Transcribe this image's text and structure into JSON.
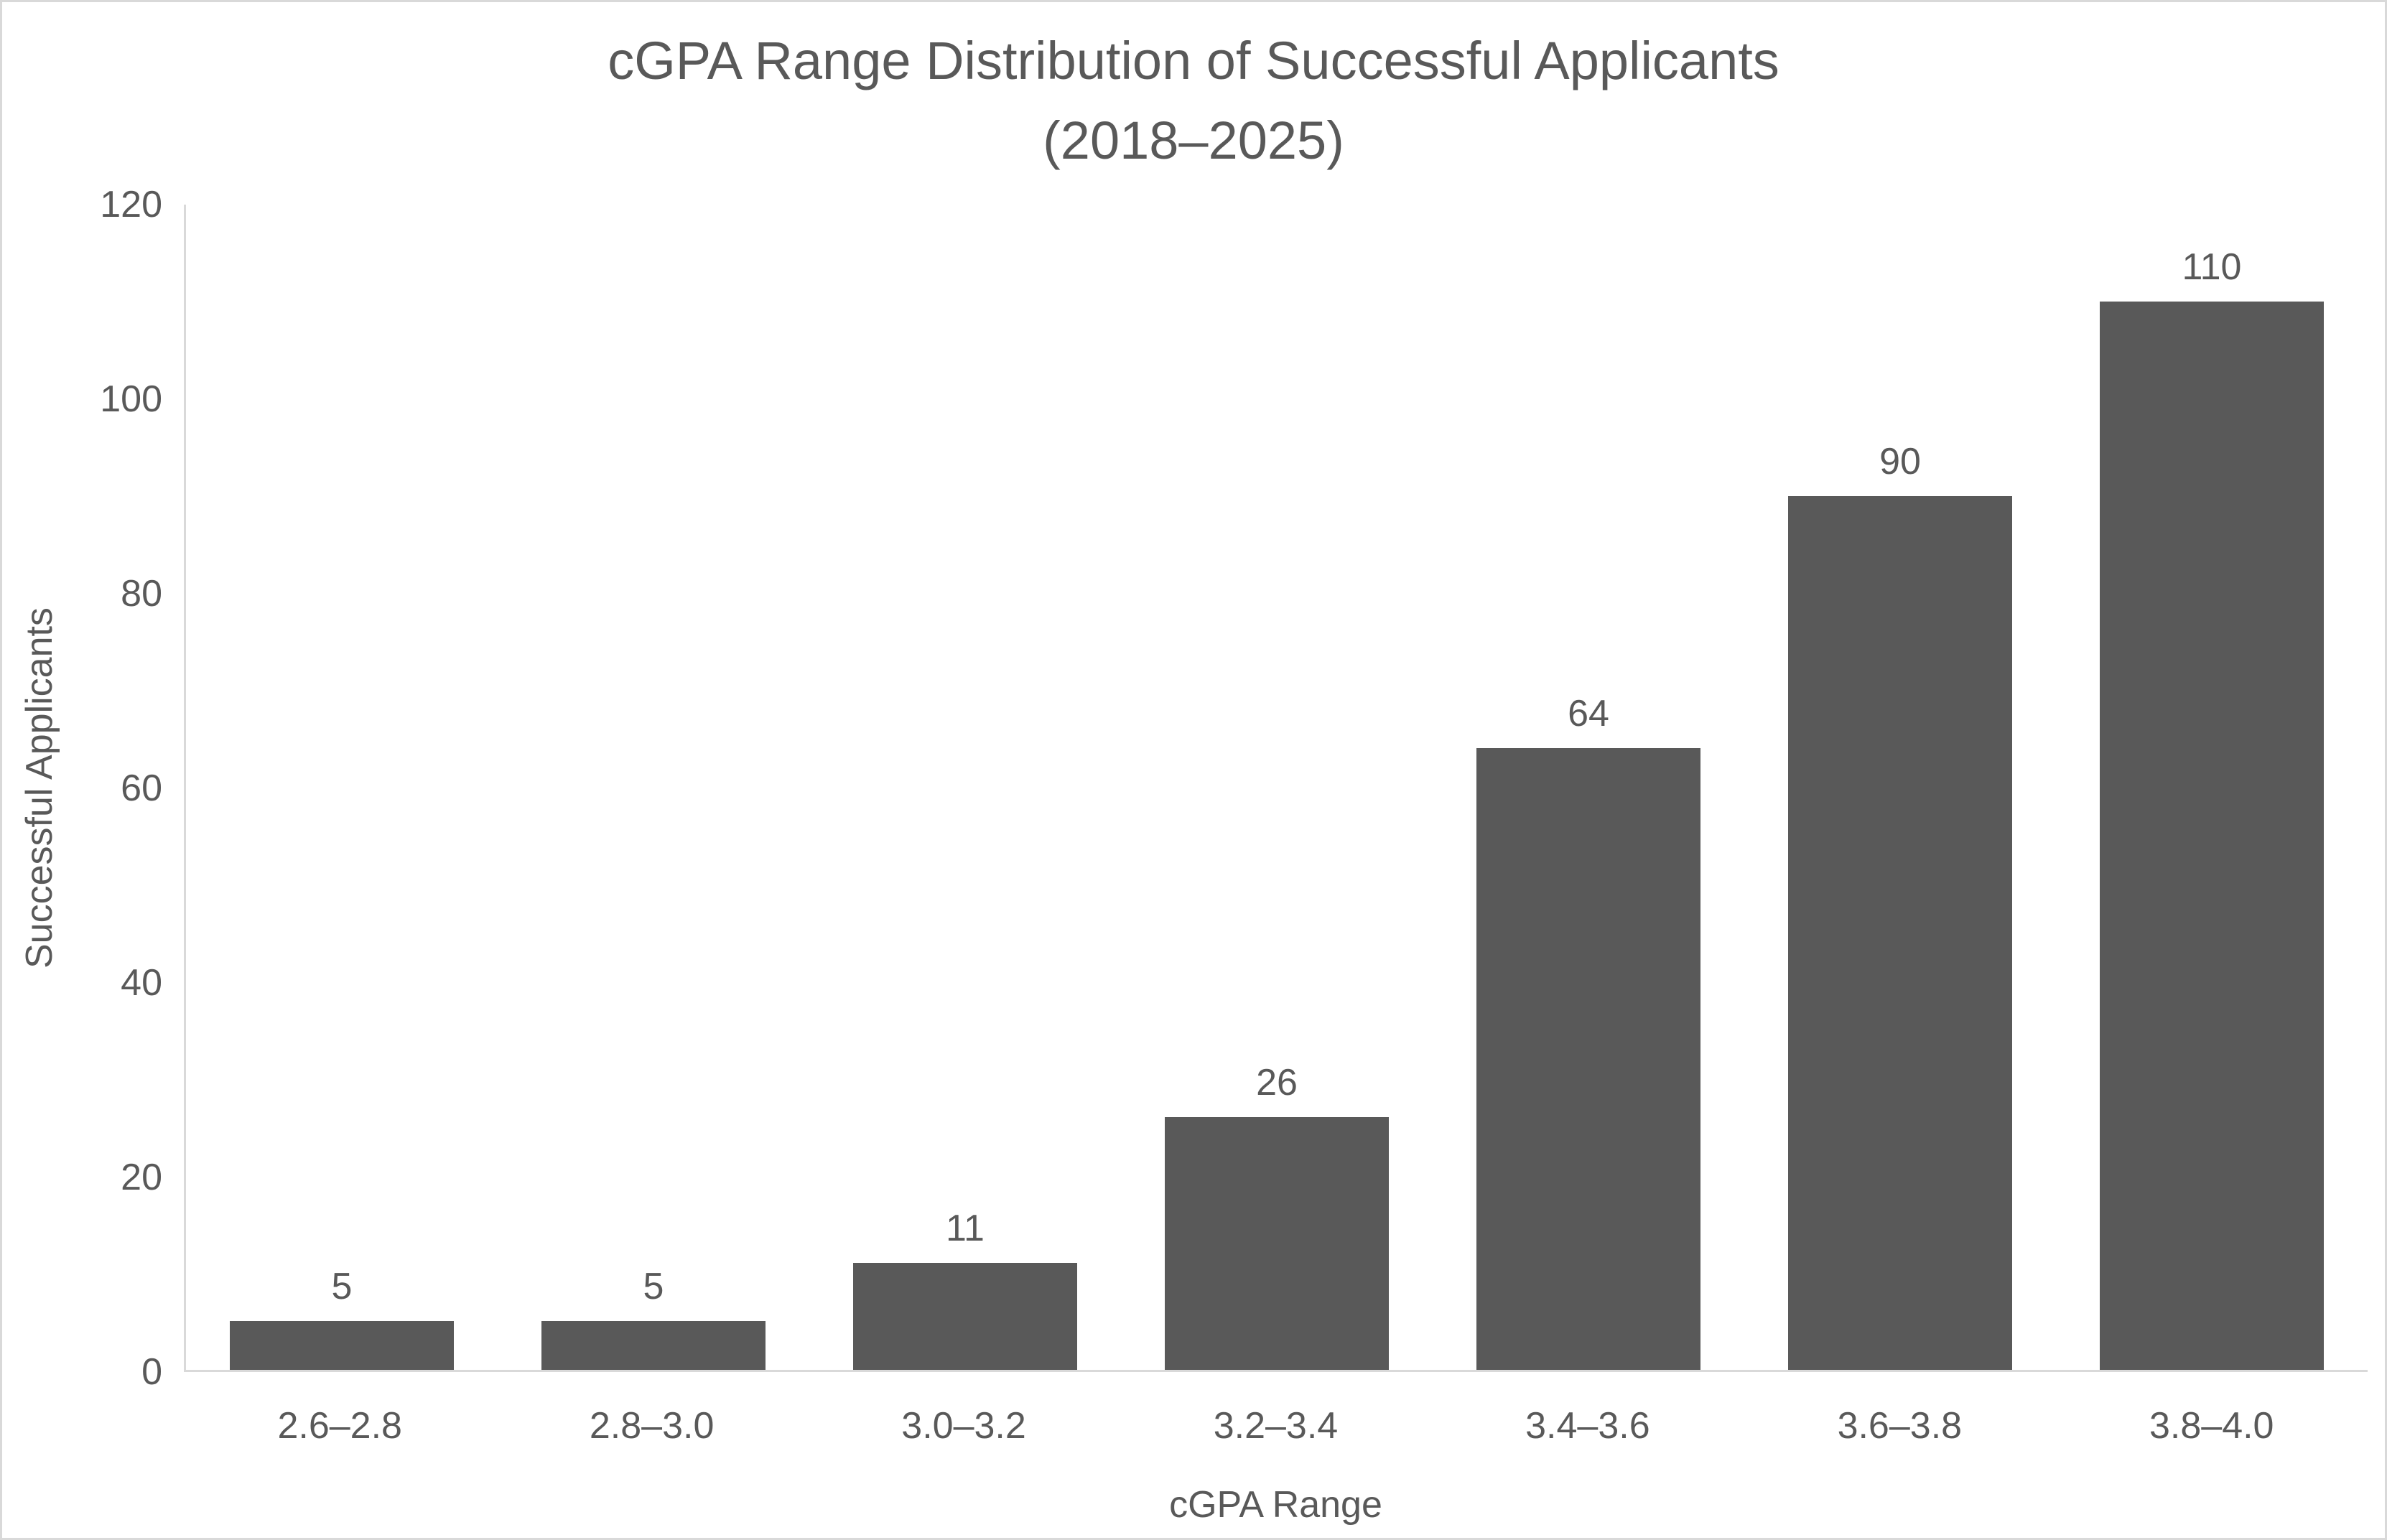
{
  "chart": {
    "title_line1": "cGPA Range Distribution of Successful Applicants",
    "title_line2": "(2018–2025)"
  },
  "chart_data": {
    "type": "bar",
    "title": "cGPA Range Distribution of Successful Applicants (2018–2025)",
    "categories": [
      "2.6–2.8",
      "2.8–3.0",
      "3.0–3.2",
      "3.2–3.4",
      "3.4–3.6",
      "3.6–3.8",
      "3.8–4.0"
    ],
    "values": [
      5,
      5,
      11,
      26,
      64,
      90,
      110
    ],
    "data_labels": [
      "5",
      "5",
      "11",
      "26",
      "64",
      "90",
      "110"
    ],
    "xlabel": "cGPA Range",
    "ylabel": "Successful Applicants",
    "ylim": [
      0,
      120
    ],
    "y_ticks": [
      0,
      20,
      40,
      60,
      80,
      100,
      120
    ],
    "grid": false,
    "legend_position": "none",
    "bar_color": "#595959",
    "axis_line_color": "#D9D9D9",
    "text_color": "#595959",
    "background_color": "#FFFFFF"
  }
}
